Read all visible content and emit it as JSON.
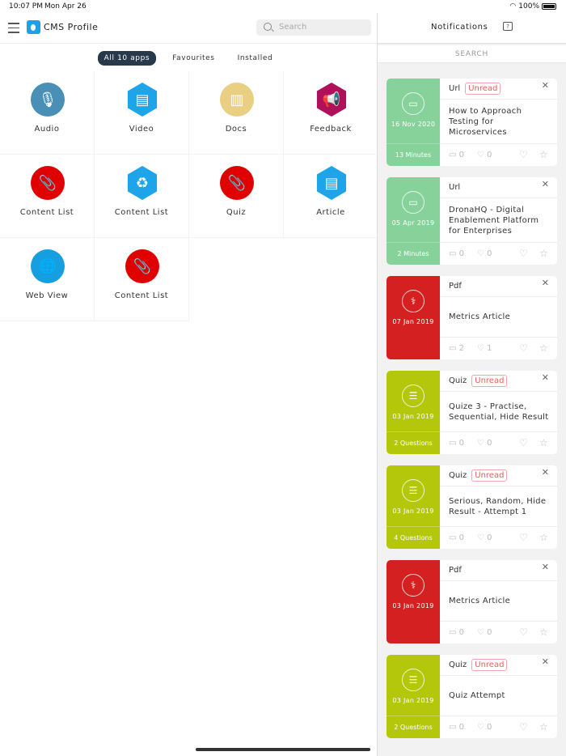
{
  "status": {
    "time": "10:07 PM",
    "date": "Mon Apr 26",
    "battery": "100%"
  },
  "header": {
    "title": "CMS Profile",
    "search_placeholder": "Search"
  },
  "tabs": [
    {
      "label": "All 10 apps",
      "active": true
    },
    {
      "label": "Favourites"
    },
    {
      "label": "Installed"
    }
  ],
  "apps": [
    {
      "label": "Audio",
      "icon": "microphone-icon",
      "shape": "circ",
      "color": "#4a8fb5",
      "glyph": "🎙"
    },
    {
      "label": "Video",
      "icon": "newspaper-icon",
      "shape": "hex",
      "color": "#1ea4e9",
      "glyph": "▤"
    },
    {
      "label": "Docs",
      "icon": "binders-icon",
      "shape": "circ",
      "color": "#e9cf82",
      "glyph": "▥"
    },
    {
      "label": "Feedback",
      "icon": "megaphone-icon",
      "shape": "hex",
      "color": "#b0105a",
      "glyph": "📢"
    },
    {
      "label": "Content List",
      "icon": "paperclip-icon",
      "shape": "circ",
      "color": "#e00000",
      "glyph": "📎"
    },
    {
      "label": "Content List",
      "icon": "recycle-icon",
      "shape": "hex",
      "color": "#1ea4e9",
      "glyph": "♻"
    },
    {
      "label": "Quiz",
      "icon": "paperclip-icon",
      "shape": "circ",
      "color": "#e00000",
      "glyph": "📎"
    },
    {
      "label": "Article",
      "icon": "newspaper-icon",
      "shape": "hex",
      "color": "#1ea4e9",
      "glyph": "▤"
    },
    {
      "label": "Web View",
      "icon": "globe-icon",
      "shape": "circ",
      "color": "#159ee0",
      "glyph": "🌐"
    },
    {
      "label": "Content List",
      "icon": "paperclip-icon",
      "shape": "circ",
      "color": "#e00000",
      "glyph": "📎"
    }
  ],
  "notifications": {
    "title": "Notifications",
    "search_label": "SEARCH",
    "colors": {
      "Url": "#86d29a",
      "Pdf": "#d42020",
      "Quiz": "#b4c70a"
    },
    "items": [
      {
        "type": "Url",
        "unread": true,
        "date": "16 Nov 2020",
        "footer": "13 Minutes",
        "title": "How to Approach Testing for Microservices",
        "comments": "0",
        "likes": "0"
      },
      {
        "type": "Url",
        "unread": false,
        "date": "05 Apr 2019",
        "footer": "2 Minutes",
        "title": "DronaHQ - Digital Enablement Platform for Enterprises",
        "comments": "0",
        "likes": "0"
      },
      {
        "type": "Pdf",
        "unread": false,
        "date": "07 Jan 2019",
        "footer": "",
        "title": "Metrics Article",
        "comments": "2",
        "likes": "1"
      },
      {
        "type": "Quiz",
        "unread": true,
        "date": "03 Jan 2019",
        "footer": "2 Questions",
        "title": "Quize 3 - Practise, Sequential, Hide Result",
        "comments": "0",
        "likes": "0"
      },
      {
        "type": "Quiz",
        "unread": true,
        "date": "03 Jan 2019",
        "footer": "4 Questions",
        "title": "Serious, Random, Hide Result - Attempt 1",
        "comments": "0",
        "likes": "0"
      },
      {
        "type": "Pdf",
        "unread": false,
        "date": "03 Jan 2019",
        "footer": "",
        "title": "Metrics Article",
        "comments": "0",
        "likes": "0"
      },
      {
        "type": "Quiz",
        "unread": true,
        "date": "03 Jan 2019",
        "footer": "2 Questions",
        "title": "Quiz Attempt",
        "comments": "0",
        "likes": "0"
      }
    ],
    "unread_label": "Unread"
  }
}
